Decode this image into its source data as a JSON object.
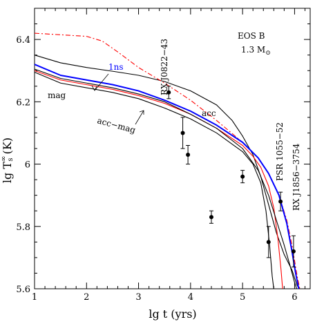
{
  "chart_data": {
    "type": "line",
    "xlabel": "lg t   (yrs)",
    "ylabel": "lg T",
    "ylabel_sup": "∞",
    "ylabel_sub": "s",
    "ylabel_unit": " (K)",
    "xlim": [
      1,
      6.3
    ],
    "ylim": [
      5.6,
      6.5
    ],
    "xticks": [
      1,
      2,
      3,
      4,
      5,
      6
    ],
    "yticks": [
      5.6,
      5.8,
      6,
      6.2,
      6.4
    ],
    "xtick_labels": [
      "1",
      "2",
      "3",
      "4",
      "5",
      "6"
    ],
    "ytick_labels": [
      "5.6",
      "5.8",
      "6",
      "6.2",
      "6.4"
    ],
    "legend_box": {
      "line1": "EOS B",
      "line2_main": "1.3 M",
      "line2_sub": "⊙"
    },
    "curve_labels": {
      "ns": "1ns",
      "mag": "mag",
      "acc": "acc",
      "acc_mag": "acc−mag"
    },
    "series": [
      {
        "name": "acc",
        "color": "#000000",
        "dash": "",
        "points": [
          [
            1,
            6.35
          ],
          [
            1.5,
            6.325
          ],
          [
            2,
            6.31
          ],
          [
            2.5,
            6.298
          ],
          [
            3,
            6.285
          ],
          [
            3.5,
            6.265
          ],
          [
            4,
            6.235
          ],
          [
            4.5,
            6.19
          ],
          [
            4.8,
            6.14
          ],
          [
            5,
            6.09
          ],
          [
            5.2,
            6.03
          ],
          [
            5.35,
            5.96
          ],
          [
            5.5,
            5.87
          ],
          [
            5.65,
            5.78
          ],
          [
            5.8,
            5.71
          ],
          [
            5.95,
            5.66
          ],
          [
            6.05,
            5.61
          ],
          [
            6.1,
            5.6
          ]
        ]
      },
      {
        "name": "acc",
        "color": "#ff0000",
        "dash": "7,3,2,3",
        "points": [
          [
            1,
            6.42
          ],
          [
            1.5,
            6.415
          ],
          [
            2,
            6.41
          ],
          [
            2.3,
            6.395
          ],
          [
            2.6,
            6.36
          ],
          [
            3,
            6.31
          ],
          [
            3.5,
            6.26
          ],
          [
            4,
            6.205
          ],
          [
            4.5,
            6.14
          ],
          [
            5,
            6.07
          ],
          [
            5.3,
            6.02
          ],
          [
            5.5,
            5.97
          ],
          [
            5.7,
            5.9
          ],
          [
            5.85,
            5.82
          ],
          [
            5.95,
            5.74
          ],
          [
            6,
            5.69
          ],
          [
            6.05,
            5.64
          ],
          [
            6.1,
            5.6
          ]
        ]
      },
      {
        "name": "1ns",
        "color": "#0000ff",
        "dash": "",
        "points": [
          [
            1,
            6.32
          ],
          [
            1.5,
            6.285
          ],
          [
            2,
            6.27
          ],
          [
            2.5,
            6.255
          ],
          [
            3,
            6.235
          ],
          [
            3.5,
            6.205
          ],
          [
            4,
            6.17
          ],
          [
            4.5,
            6.125
          ],
          [
            5,
            6.07
          ],
          [
            5.3,
            6.02
          ],
          [
            5.5,
            5.97
          ],
          [
            5.7,
            5.9
          ],
          [
            5.85,
            5.81
          ],
          [
            5.95,
            5.72
          ],
          [
            6.02,
            5.65
          ],
          [
            6.08,
            5.6
          ]
        ]
      },
      {
        "name": "mag",
        "color": "#ff0000",
        "dash": "",
        "points": [
          [
            1,
            6.3
          ],
          [
            1.5,
            6.27
          ],
          [
            2,
            6.255
          ],
          [
            2.5,
            6.24
          ],
          [
            3,
            6.22
          ],
          [
            3.5,
            6.195
          ],
          [
            4,
            6.16
          ],
          [
            4.5,
            6.115
          ],
          [
            5,
            6.06
          ],
          [
            5.2,
            6.025
          ],
          [
            5.35,
            5.99
          ],
          [
            5.5,
            5.93
          ],
          [
            5.6,
            5.86
          ],
          [
            5.68,
            5.76
          ],
          [
            5.74,
            5.66
          ],
          [
            5.77,
            5.6
          ]
        ]
      },
      {
        "name": "mag",
        "color": "#000000",
        "dash": "",
        "points": [
          [
            1,
            6.295
          ],
          [
            1.5,
            6.26
          ],
          [
            2,
            6.245
          ],
          [
            2.5,
            6.23
          ],
          [
            3,
            6.21
          ],
          [
            3.5,
            6.18
          ],
          [
            4,
            6.145
          ],
          [
            4.5,
            6.1
          ],
          [
            5,
            6.04
          ],
          [
            5.2,
            6.0
          ],
          [
            5.35,
            5.94
          ],
          [
            5.45,
            5.85
          ],
          [
            5.52,
            5.74
          ],
          [
            5.57,
            5.64
          ],
          [
            5.6,
            5.6
          ]
        ]
      },
      {
        "name": "acc−mag",
        "color": "#000000",
        "dash": "",
        "points": [
          [
            1,
            6.305
          ],
          [
            1.5,
            6.275
          ],
          [
            2,
            6.26
          ],
          [
            2.5,
            6.245
          ],
          [
            3,
            6.225
          ],
          [
            3.5,
            6.2
          ],
          [
            4,
            6.16
          ],
          [
            4.5,
            6.115
          ],
          [
            5,
            6.05
          ],
          [
            5.3,
            5.98
          ],
          [
            5.5,
            5.9
          ],
          [
            5.65,
            5.82
          ],
          [
            5.8,
            5.74
          ],
          [
            5.92,
            5.67
          ],
          [
            6.0,
            5.62
          ],
          [
            6.04,
            5.6
          ]
        ]
      }
    ],
    "observations": [
      {
        "name": "RX J0822−43",
        "x": 3.58,
        "y": 6.23,
        "yerr": 0.02,
        "label_x": 3.65,
        "label_y_top": 6.5,
        "label": "RX J0822−43"
      },
      {
        "name": "",
        "x": 3.85,
        "y": 6.1,
        "yerr": 0.05
      },
      {
        "name": "",
        "x": 3.95,
        "y": 6.03,
        "yerr": 0.03
      },
      {
        "name": "",
        "x": 4.4,
        "y": 5.83,
        "yerr": 0.02
      },
      {
        "name": "",
        "x": 5.0,
        "y": 5.96,
        "yerr": 0.02
      },
      {
        "name": "",
        "x": 5.5,
        "y": 5.75,
        "yerr": 0.05
      },
      {
        "name": "PSR 1055−52",
        "x": 5.73,
        "y": 5.88,
        "yerr": 0.03,
        "label": "PSR 1055−52"
      },
      {
        "name": "RX J1856−3754",
        "x": 5.98,
        "y": 5.72,
        "yerr": 0.05,
        "label": "RX J1856−3754"
      }
    ]
  }
}
